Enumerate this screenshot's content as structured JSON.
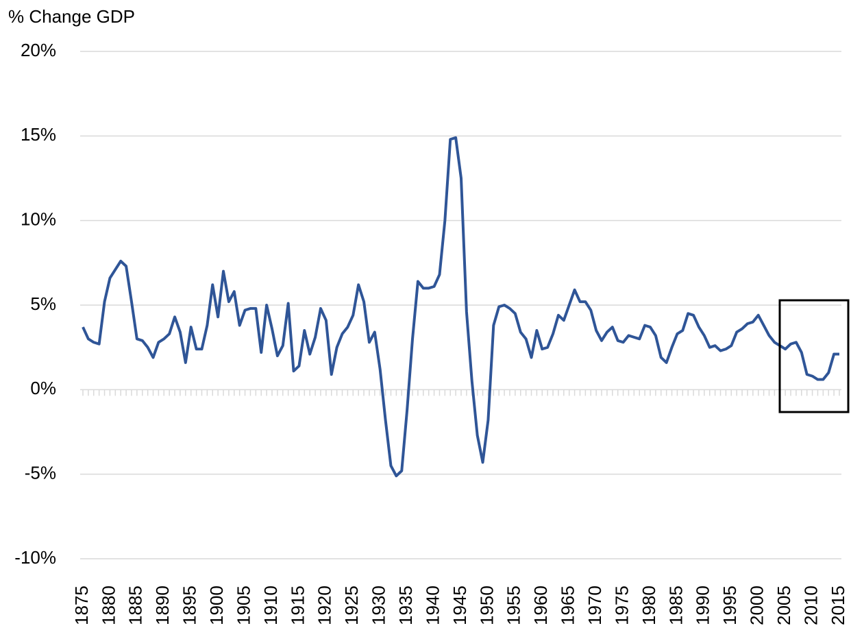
{
  "chart_data": {
    "type": "line",
    "y_label": "% Change GDP",
    "x": [
      1875,
      1876,
      1877,
      1878,
      1879,
      1880,
      1881,
      1882,
      1883,
      1884,
      1885,
      1886,
      1887,
      1888,
      1889,
      1890,
      1891,
      1892,
      1893,
      1894,
      1895,
      1896,
      1897,
      1898,
      1899,
      1900,
      1901,
      1902,
      1903,
      1904,
      1905,
      1906,
      1907,
      1908,
      1909,
      1910,
      1911,
      1912,
      1913,
      1914,
      1915,
      1916,
      1917,
      1918,
      1919,
      1920,
      1921,
      1922,
      1923,
      1924,
      1925,
      1926,
      1927,
      1928,
      1929,
      1930,
      1931,
      1932,
      1933,
      1934,
      1935,
      1936,
      1937,
      1938,
      1939,
      1940,
      1941,
      1942,
      1943,
      1944,
      1945,
      1946,
      1947,
      1948,
      1949,
      1950,
      1951,
      1952,
      1953,
      1954,
      1955,
      1956,
      1957,
      1958,
      1959,
      1960,
      1961,
      1962,
      1963,
      1964,
      1965,
      1966,
      1967,
      1968,
      1969,
      1970,
      1971,
      1972,
      1973,
      1974,
      1975,
      1976,
      1977,
      1978,
      1979,
      1980,
      1981,
      1982,
      1983,
      1984,
      1985,
      1986,
      1987,
      1988,
      1989,
      1990,
      1991,
      1992,
      1993,
      1994,
      1995,
      1996,
      1997,
      1998,
      1999,
      2000,
      2001,
      2002,
      2003,
      2004,
      2005,
      2006,
      2007,
      2008,
      2009,
      2010,
      2011,
      2012,
      2013,
      2014,
      2015
    ],
    "series": [
      {
        "name": "% Change GDP",
        "color": "#2f5597",
        "values": [
          3.7,
          3.0,
          2.8,
          2.7,
          5.2,
          6.6,
          7.1,
          7.6,
          7.3,
          5.2,
          3.0,
          2.9,
          2.5,
          1.9,
          2.8,
          3.0,
          3.3,
          4.3,
          3.4,
          1.6,
          3.7,
          2.4,
          2.4,
          3.8,
          6.2,
          4.3,
          7.0,
          5.2,
          5.8,
          3.8,
          4.7,
          4.8,
          4.8,
          2.2,
          5.0,
          3.6,
          2.0,
          2.6,
          5.1,
          1.1,
          1.4,
          3.5,
          2.1,
          3.1,
          4.8,
          4.1,
          0.9,
          2.5,
          3.3,
          3.7,
          4.4,
          6.2,
          5.2,
          2.8,
          3.4,
          1.2,
          -1.8,
          -4.5,
          -5.1,
          -4.8,
          -1.2,
          3.0,
          6.4,
          6.0,
          6.0,
          6.1,
          6.8,
          10.0,
          14.8,
          14.9,
          12.5,
          4.6,
          0.5,
          -2.7,
          -4.3,
          -1.8,
          3.8,
          4.9,
          5.0,
          4.8,
          4.5,
          3.4,
          3.0,
          1.9,
          3.5,
          2.4,
          2.5,
          3.3,
          4.4,
          4.1,
          5.0,
          5.9,
          5.2,
          5.2,
          4.7,
          3.5,
          2.9,
          3.4,
          3.7,
          2.9,
          2.8,
          3.2,
          3.1,
          3.0,
          3.8,
          3.7,
          3.2,
          1.9,
          1.6,
          2.5,
          3.3,
          3.5,
          4.5,
          4.4,
          3.7,
          3.2,
          2.5,
          2.6,
          2.3,
          2.4,
          2.6,
          3.4,
          3.6,
          3.9,
          4.0,
          4.4,
          3.8,
          3.2,
          2.8,
          2.6,
          2.4,
          2.7,
          2.8,
          2.2,
          0.9,
          0.8,
          0.6,
          0.6,
          1.0,
          2.1,
          2.1
        ]
      }
    ],
    "xlim": [
      1875,
      2015
    ],
    "xticks": [
      1875,
      1880,
      1885,
      1890,
      1895,
      1900,
      1905,
      1910,
      1915,
      1920,
      1925,
      1930,
      1935,
      1940,
      1945,
      1950,
      1955,
      1960,
      1965,
      1970,
      1975,
      1980,
      1985,
      1990,
      1995,
      2000,
      2005,
      2010,
      2015
    ],
    "ylim": [
      -10,
      20
    ],
    "yticks": [
      {
        "value": -10,
        "label": "-10%"
      },
      {
        "value": -5,
        "label": "-5%"
      },
      {
        "value": 0,
        "label": "0%"
      },
      {
        "value": 5,
        "label": "5%"
      },
      {
        "value": 10,
        "label": "10%"
      },
      {
        "value": 15,
        "label": "15%"
      },
      {
        "value": 20,
        "label": "20%"
      }
    ],
    "grid": true
  }
}
